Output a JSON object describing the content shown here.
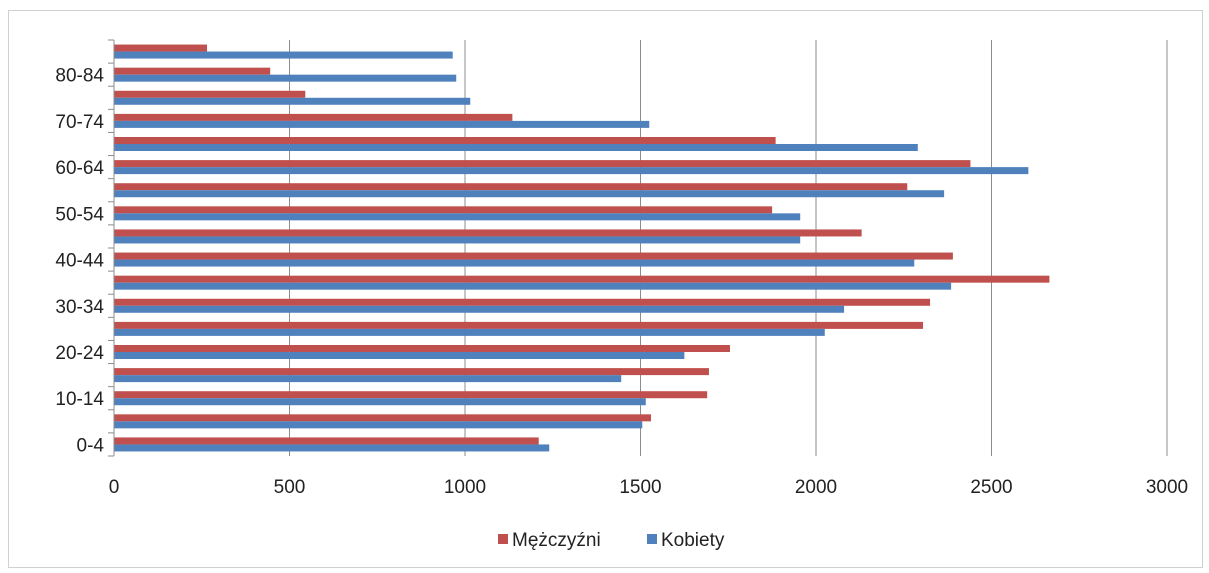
{
  "chart_data": {
    "type": "bar",
    "orientation": "horizontal",
    "categories": [
      "0-4",
      "5-9",
      "10-14",
      "15-19",
      "20-24",
      "25-29",
      "30-34",
      "35-39",
      "40-44",
      "45-49",
      "50-54",
      "55-59",
      "60-64",
      "65-69",
      "70-74",
      "75-79",
      "80-84",
      "85+"
    ],
    "category_labels_shown": [
      "0-4",
      "",
      "10-14",
      "",
      "20-24",
      "",
      "30-34",
      "",
      "40-44",
      "",
      "50-54",
      "",
      "60-64",
      "",
      "70-74",
      "",
      "80-84",
      ""
    ],
    "series": [
      {
        "name": "Mężczyźni",
        "color": "#c0504d",
        "values": [
          1210,
          1530,
          1690,
          1695,
          1755,
          2305,
          2325,
          2665,
          2390,
          2130,
          1875,
          2260,
          2440,
          1885,
          1135,
          545,
          445,
          265
        ]
      },
      {
        "name": "Kobiety",
        "color": "#4f81bd",
        "values": [
          1240,
          1505,
          1515,
          1445,
          1625,
          2025,
          2080,
          2385,
          2280,
          1955,
          1955,
          2365,
          2605,
          2290,
          1525,
          1015,
          975,
          965
        ]
      }
    ],
    "xlim": [
      0,
      3000
    ],
    "xticks": [
      0,
      500,
      1000,
      1500,
      2000,
      2500,
      3000
    ],
    "grid": "vertical",
    "legend_position": "bottom"
  }
}
